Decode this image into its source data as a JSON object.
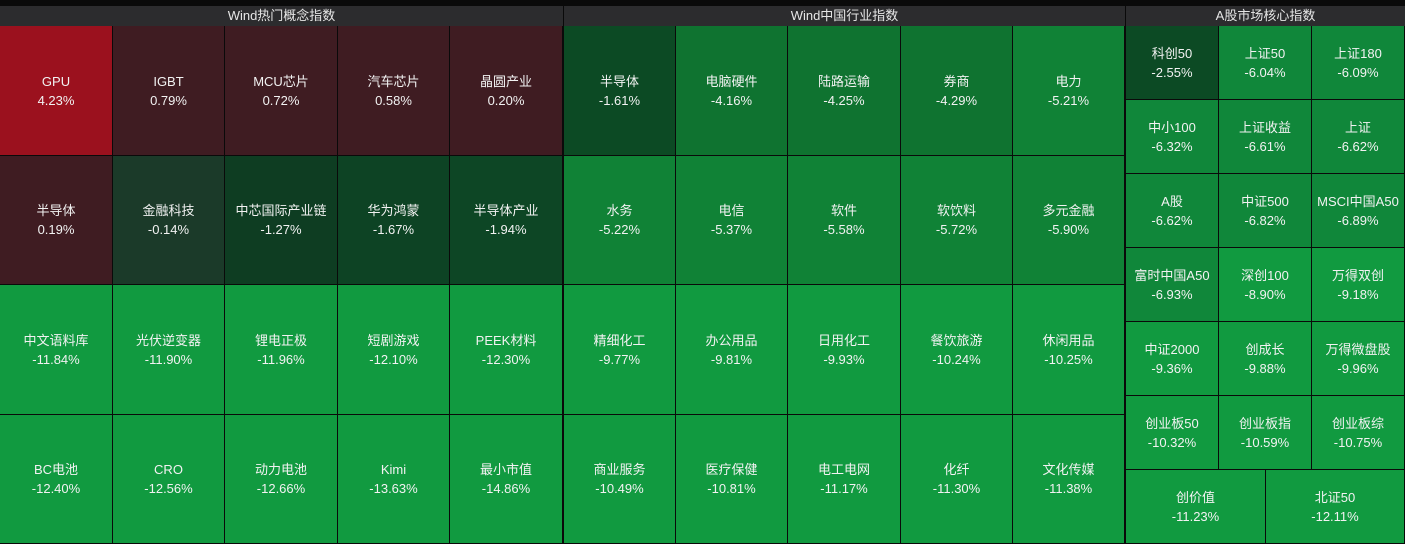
{
  "colors": {
    "up_strong": "#9b111e",
    "up_weak": "#3f1c22",
    "flat_dark": "#1b3a29",
    "down_dark": "#0c4a24",
    "down_mid": "#0f7330",
    "down": "#108a3a",
    "down_bright": "#119a40"
  },
  "panels": [
    {
      "title": "Wind热门概念指数",
      "cols": 5,
      "tiles": [
        {
          "name": "GPU",
          "pct": "4.23%",
          "color": "#9b111e"
        },
        {
          "name": "IGBT",
          "pct": "0.79%",
          "color": "#3f1c22"
        },
        {
          "name": "MCU芯片",
          "pct": "0.72%",
          "color": "#3f1c22"
        },
        {
          "name": "汽车芯片",
          "pct": "0.58%",
          "color": "#3f1c22"
        },
        {
          "name": "晶圆产业",
          "pct": "0.20%",
          "color": "#3f1c22"
        },
        {
          "name": "半导体",
          "pct": "0.19%",
          "color": "#3f1c22"
        },
        {
          "name": "金融科技",
          "pct": "-0.14%",
          "color": "#1b3a29"
        },
        {
          "name": "中芯国际产业链",
          "pct": "-1.27%",
          "color": "#0e3d22"
        },
        {
          "name": "华为鸿蒙",
          "pct": "-1.67%",
          "color": "#0d4324"
        },
        {
          "name": "半导体产业",
          "pct": "-1.94%",
          "color": "#0d4625"
        },
        {
          "name": "中文语料库",
          "pct": "-11.84%",
          "color": "#119a40"
        },
        {
          "name": "光伏逆变器",
          "pct": "-11.90%",
          "color": "#119a40"
        },
        {
          "name": "锂电正极",
          "pct": "-11.96%",
          "color": "#119a40"
        },
        {
          "name": "短剧游戏",
          "pct": "-12.10%",
          "color": "#119a40"
        },
        {
          "name": "PEEK材料",
          "pct": "-12.30%",
          "color": "#119a40"
        },
        {
          "name": "BC电池",
          "pct": "-12.40%",
          "color": "#119a40"
        },
        {
          "name": "CRO",
          "pct": "-12.56%",
          "color": "#119a40"
        },
        {
          "name": "动力电池",
          "pct": "-12.66%",
          "color": "#119a40"
        },
        {
          "name": "Kimi",
          "pct": "-13.63%",
          "color": "#119a40"
        },
        {
          "name": "最小市值",
          "pct": "-14.86%",
          "color": "#119a40"
        }
      ]
    },
    {
      "title": "Wind中国行业指数",
      "cols": 5,
      "tiles": [
        {
          "name": "半导体",
          "pct": "-1.61%",
          "color": "#0c4a24"
        },
        {
          "name": "电脑硬件",
          "pct": "-4.16%",
          "color": "#0f7330"
        },
        {
          "name": "陆路运输",
          "pct": "-4.25%",
          "color": "#0f7330"
        },
        {
          "name": "券商",
          "pct": "-4.29%",
          "color": "#0f7330"
        },
        {
          "name": "电力",
          "pct": "-5.21%",
          "color": "#108236"
        },
        {
          "name": "水务",
          "pct": "-5.22%",
          "color": "#108236"
        },
        {
          "name": "电信",
          "pct": "-5.37%",
          "color": "#108236"
        },
        {
          "name": "软件",
          "pct": "-5.58%",
          "color": "#108236"
        },
        {
          "name": "软饮料",
          "pct": "-5.72%",
          "color": "#108236"
        },
        {
          "name": "多元金融",
          "pct": "-5.90%",
          "color": "#108236"
        },
        {
          "name": "精细化工",
          "pct": "-9.77%",
          "color": "#119a40"
        },
        {
          "name": "办公用品",
          "pct": "-9.81%",
          "color": "#119a40"
        },
        {
          "name": "日用化工",
          "pct": "-9.93%",
          "color": "#119a40"
        },
        {
          "name": "餐饮旅游",
          "pct": "-10.24%",
          "color": "#119a40"
        },
        {
          "name": "休闲用品",
          "pct": "-10.25%",
          "color": "#119a40"
        },
        {
          "name": "商业服务",
          "pct": "-10.49%",
          "color": "#119a40"
        },
        {
          "name": "医疗保健",
          "pct": "-10.81%",
          "color": "#119a40"
        },
        {
          "name": "电工电网",
          "pct": "-11.17%",
          "color": "#119a40"
        },
        {
          "name": "化纤",
          "pct": "-11.30%",
          "color": "#119a40"
        },
        {
          "name": "文化传媒",
          "pct": "-11.38%",
          "color": "#119a40"
        }
      ]
    },
    {
      "title": "A股市场核心指数",
      "cols": 3,
      "tiles": [
        {
          "name": "科创50",
          "pct": "-2.55%",
          "color": "#0c4a24"
        },
        {
          "name": "上证50",
          "pct": "-6.04%",
          "color": "#10873a"
        },
        {
          "name": "上证180",
          "pct": "-6.09%",
          "color": "#10873a"
        },
        {
          "name": "中小100",
          "pct": "-6.32%",
          "color": "#10873a"
        },
        {
          "name": "上证收益",
          "pct": "-6.61%",
          "color": "#10873a"
        },
        {
          "name": "上证",
          "pct": "-6.62%",
          "color": "#10873a"
        },
        {
          "name": "A股",
          "pct": "-6.62%",
          "color": "#10873a"
        },
        {
          "name": "中证500",
          "pct": "-6.82%",
          "color": "#10873a"
        },
        {
          "name": "MSCI中国A50",
          "pct": "-6.89%",
          "color": "#10873a"
        },
        {
          "name": "富时中国A50",
          "pct": "-6.93%",
          "color": "#10873a"
        },
        {
          "name": "深创100",
          "pct": "-8.90%",
          "color": "#119a40"
        },
        {
          "name": "万得双创",
          "pct": "-9.18%",
          "color": "#119a40"
        },
        {
          "name": "中证2000",
          "pct": "-9.36%",
          "color": "#119a40"
        },
        {
          "name": "创成长",
          "pct": "-9.88%",
          "color": "#119a40"
        },
        {
          "name": "万得微盘股",
          "pct": "-9.96%",
          "color": "#119a40"
        },
        {
          "name": "创业板50",
          "pct": "-10.32%",
          "color": "#119a40"
        },
        {
          "name": "创业板指",
          "pct": "-10.59%",
          "color": "#119a40"
        },
        {
          "name": "创业板综",
          "pct": "-10.75%",
          "color": "#119a40"
        },
        {
          "name": "创价值",
          "pct": "-11.23%",
          "color": "#119a40"
        },
        {
          "name": "北证50",
          "pct": "-12.11%",
          "color": "#119a40"
        }
      ]
    }
  ]
}
